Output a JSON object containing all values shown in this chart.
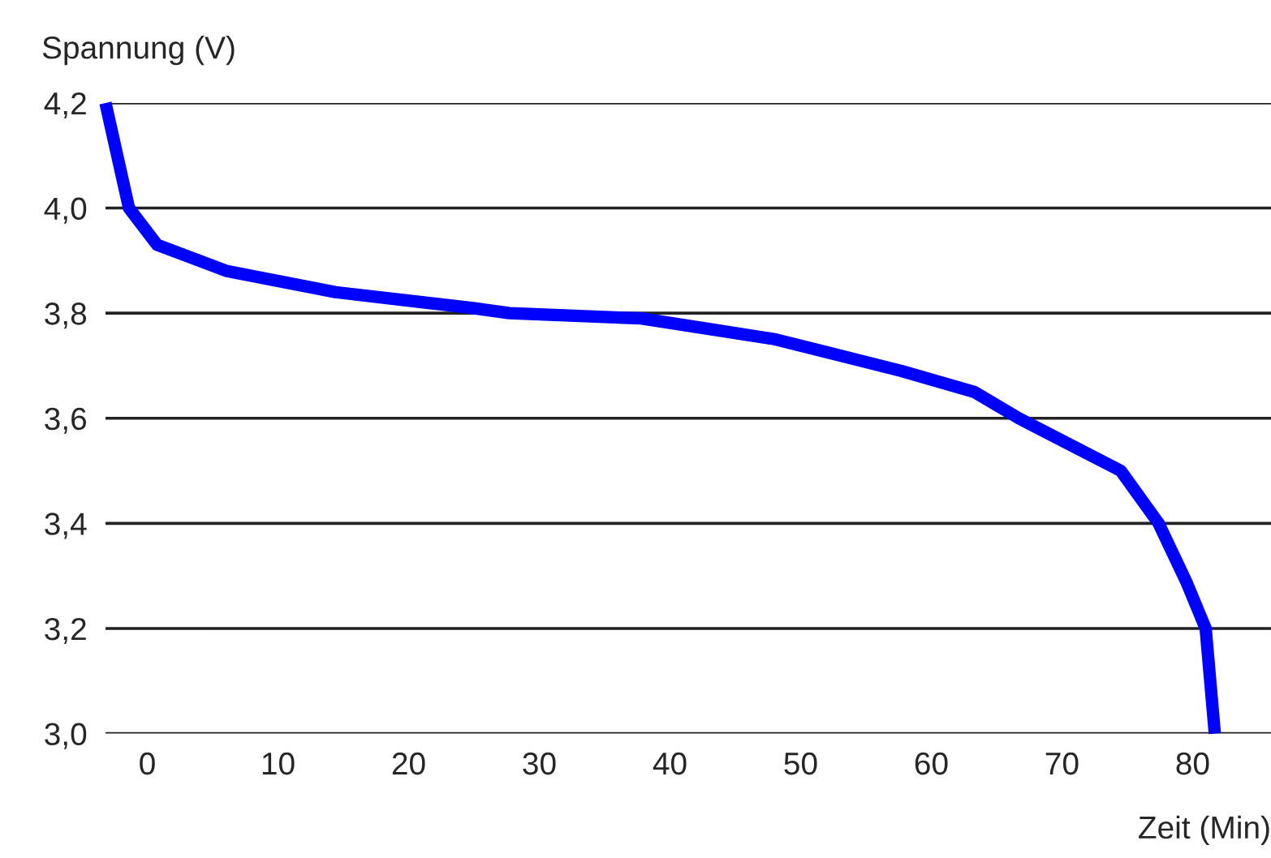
{
  "chart_data": {
    "type": "line",
    "xlabel": "Zeit (Min)",
    "ylabel": "Spannung (V)",
    "x": [
      -3.2,
      -1.4,
      0.75,
      6.1,
      14.4,
      24.8,
      27.7,
      37.8,
      48.1,
      57.7,
      63.3,
      66.7,
      74.5,
      77.4,
      79.5,
      81.0,
      81.7
    ],
    "series": [
      {
        "color": "#0000ff",
        "values": [
          4.2,
          4.0,
          3.93,
          3.88,
          3.84,
          3.81,
          3.8,
          3.79,
          3.75,
          3.69,
          3.65,
          3.6,
          3.5,
          3.4,
          3.29,
          3.2,
          3.0
        ]
      }
    ],
    "xlim": [
      -3.2,
      86
    ],
    "ylim": [
      3.0,
      4.2
    ],
    "xticks": [
      0,
      10,
      20,
      30,
      40,
      50,
      60,
      70,
      80
    ],
    "yticks": [
      {
        "value": 3.0,
        "label": "3,0"
      },
      {
        "value": 3.2,
        "label": "3,2"
      },
      {
        "value": 3.4,
        "label": "3,4"
      },
      {
        "value": 3.6,
        "label": "3,6"
      },
      {
        "value": 3.8,
        "label": "3,8"
      },
      {
        "value": 4.0,
        "label": "4,0"
      },
      {
        "value": 4.2,
        "label": "4,2"
      }
    ],
    "grid": "y",
    "legend": false,
    "marker": "none",
    "line_style": "solid"
  }
}
